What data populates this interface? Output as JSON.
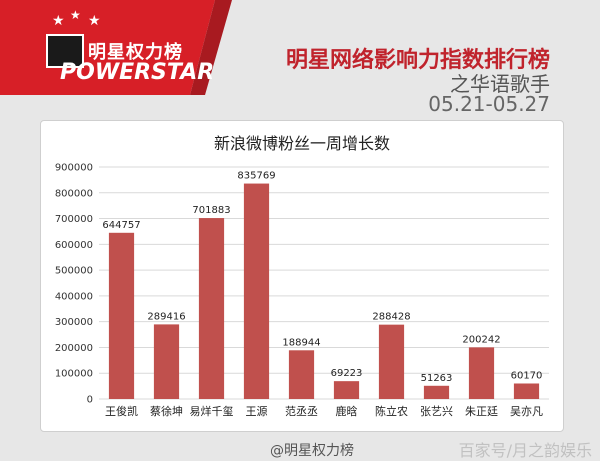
{
  "header": {
    "brand_cn": "明星权力榜",
    "brand_en": "POWERSTAR",
    "title_main": "明星网络影响力指数排行榜",
    "title_sub": "之华语歌手",
    "date_range": "05.21-05.27"
  },
  "colors": {
    "accent": "#c0232c",
    "bar": "#c0504d",
    "header_bg": "#e7e7e7"
  },
  "chart_data": {
    "type": "bar",
    "title": "新浪微博粉丝一周增长数",
    "categories": [
      "王俊凯",
      "蔡徐坤",
      "易烊千玺",
      "王源",
      "范丞丞",
      "鹿晗",
      "陈立农",
      "张艺兴",
      "朱正廷",
      "吴亦凡"
    ],
    "values": [
      644757,
      289416,
      701883,
      835769,
      188944,
      69223,
      288428,
      51263,
      200242,
      60170
    ],
    "ylim": [
      0,
      900000
    ],
    "yticks": [
      0,
      100000,
      200000,
      300000,
      400000,
      500000,
      600000,
      700000,
      800000,
      900000
    ],
    "grid": true,
    "xlabel": "",
    "ylabel": ""
  },
  "footer": {
    "watermark_left": "@明星权力榜",
    "watermark_right": "百家号/月之韵娱乐"
  }
}
